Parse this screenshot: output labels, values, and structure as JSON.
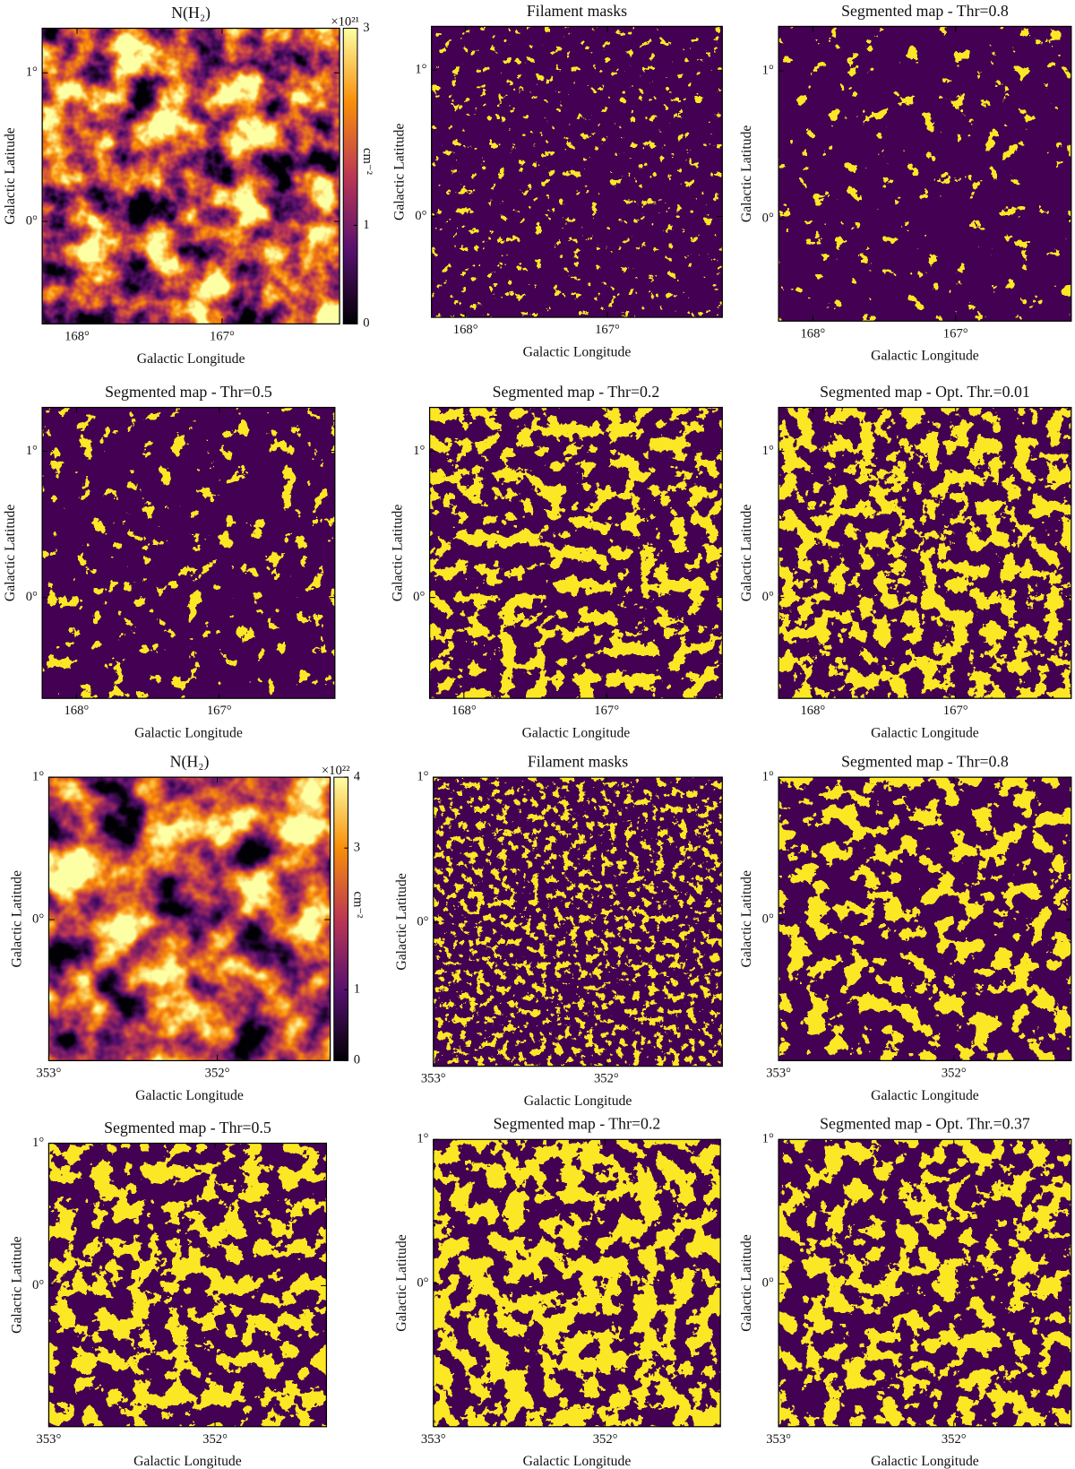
{
  "chart_data": [
    {
      "type": "image",
      "title": "N(H₂)",
      "xlabel": "Galactic Longitude",
      "ylabel": "Galactic Latitude",
      "xlim": [
        168.24,
        166.19
      ],
      "ylim": [
        -0.69,
        1.3
      ],
      "xticks": [
        {
          "value": 168,
          "label": "168°"
        },
        {
          "value": 167,
          "label": "167°"
        }
      ],
      "yticks": [
        {
          "value": 1,
          "label": "1°"
        },
        {
          "value": 0,
          "label": "0°"
        }
      ],
      "colorbar": {
        "lim": [
          0,
          3
        ],
        "ticks": [
          0,
          1,
          3
        ],
        "multiplier": "×10²¹",
        "label": "cm⁻²"
      }
    },
    {
      "type": "image",
      "title": "Filament masks",
      "xlabel": "Galactic Longitude",
      "ylabel": "Galactic Latitude",
      "xlim": [
        168.24,
        166.19
      ],
      "ylim": [
        -0.69,
        1.3
      ],
      "xticks": [
        {
          "value": 168,
          "label": "168°"
        },
        {
          "value": 167,
          "label": "167°"
        }
      ],
      "yticks": [
        {
          "value": 1,
          "label": "1°"
        },
        {
          "value": 0,
          "label": "0°"
        }
      ]
    },
    {
      "type": "image",
      "title": "Segmented map - Thr=0.8",
      "xlabel": "Galactic Longitude",
      "ylabel": "Galactic Latitude",
      "xlim": [
        168.24,
        166.19
      ],
      "ylim": [
        -0.69,
        1.3
      ],
      "xticks": [
        {
          "value": 168,
          "label": "168°"
        },
        {
          "value": 167,
          "label": "167°"
        }
      ],
      "yticks": [
        {
          "value": 1,
          "label": "1°"
        },
        {
          "value": 0,
          "label": "0°"
        }
      ]
    },
    {
      "type": "image",
      "title": "Segmented map - Thr=0.5",
      "xlabel": "Galactic Longitude",
      "ylabel": "Galactic Latitude",
      "xlim": [
        168.24,
        166.19
      ],
      "ylim": [
        -0.69,
        1.3
      ],
      "xticks": [
        {
          "value": 168,
          "label": "168°"
        },
        {
          "value": 167,
          "label": "167°"
        }
      ],
      "yticks": [
        {
          "value": 1,
          "label": "1°"
        },
        {
          "value": 0,
          "label": "0°"
        }
      ]
    },
    {
      "type": "image",
      "title": "Segmented map - Thr=0.2",
      "xlabel": "Galactic Longitude",
      "ylabel": "Galactic Latitude",
      "xlim": [
        168.24,
        166.19
      ],
      "ylim": [
        -0.69,
        1.3
      ],
      "xticks": [
        {
          "value": 168,
          "label": "168°"
        },
        {
          "value": 167,
          "label": "167°"
        }
      ],
      "yticks": [
        {
          "value": 1,
          "label": "1°"
        },
        {
          "value": 0,
          "label": "0°"
        }
      ]
    },
    {
      "type": "image",
      "title": "Segmented map - Opt. Thr.=0.01",
      "xlabel": "Galactic Longitude",
      "ylabel": "Galactic Latitude",
      "xlim": [
        168.24,
        166.19
      ],
      "ylim": [
        -0.69,
        1.3
      ],
      "xticks": [
        {
          "value": 168,
          "label": "168°"
        },
        {
          "value": 167,
          "label": "167°"
        }
      ],
      "yticks": [
        {
          "value": 1,
          "label": "1°"
        },
        {
          "value": 0,
          "label": "0°"
        }
      ]
    },
    {
      "type": "image",
      "title": "N(H₂)",
      "xlabel": "Galactic Longitude",
      "ylabel": "Galactic Latitude",
      "xlim": [
        353.0,
        351.33
      ],
      "ylim": [
        -0.99,
        1.0
      ],
      "xticks": [
        {
          "value": 353,
          "label": "353°"
        },
        {
          "value": 352,
          "label": "352°"
        }
      ],
      "yticks": [
        {
          "value": 1,
          "label": "1°"
        },
        {
          "value": 0,
          "label": "0°"
        }
      ],
      "colorbar": {
        "lim": [
          0,
          4
        ],
        "ticks": [
          0,
          1,
          3,
          4
        ],
        "multiplier": "×10²²",
        "label": "cm⁻²"
      }
    },
    {
      "type": "image",
      "title": "Filament masks",
      "xlabel": "Galactic Longitude",
      "ylabel": "Galactic Latitude",
      "xlim": [
        353.0,
        351.33
      ],
      "ylim": [
        -0.99,
        1.0
      ],
      "xticks": [
        {
          "value": 353,
          "label": "353°"
        },
        {
          "value": 352,
          "label": "352°"
        }
      ],
      "yticks": [
        {
          "value": 1,
          "label": "1°"
        },
        {
          "value": 0,
          "label": "0°"
        }
      ]
    },
    {
      "type": "image",
      "title": "Segmented map - Thr=0.8",
      "xlabel": "Galactic Longitude",
      "ylabel": "Galactic Latitude",
      "xlim": [
        353.0,
        351.33
      ],
      "ylim": [
        -0.99,
        1.0
      ],
      "xticks": [
        {
          "value": 353,
          "label": "353°"
        },
        {
          "value": 352,
          "label": "352°"
        }
      ],
      "yticks": [
        {
          "value": 1,
          "label": "1°"
        },
        {
          "value": 0,
          "label": "0°"
        }
      ]
    },
    {
      "type": "image",
      "title": "Segmented map - Thr=0.5",
      "xlabel": "Galactic Longitude",
      "ylabel": "Galactic Latitude",
      "xlim": [
        353.0,
        351.33
      ],
      "ylim": [
        -0.99,
        1.0
      ],
      "xticks": [
        {
          "value": 353,
          "label": "353°"
        },
        {
          "value": 352,
          "label": "352°"
        }
      ],
      "yticks": [
        {
          "value": 1,
          "label": "1°"
        },
        {
          "value": 0,
          "label": "0°"
        }
      ]
    },
    {
      "type": "image",
      "title": "Segmented map - Thr=0.2",
      "xlabel": "Galactic Longitude",
      "ylabel": "Galactic Latitude",
      "xlim": [
        353.0,
        351.33
      ],
      "ylim": [
        -0.99,
        1.0
      ],
      "xticks": [
        {
          "value": 353,
          "label": "353°"
        },
        {
          "value": 352,
          "label": "352°"
        }
      ],
      "yticks": [
        {
          "value": 1,
          "label": "1°"
        },
        {
          "value": 0,
          "label": "0°"
        }
      ]
    },
    {
      "type": "image",
      "title": "Segmented map - Opt. Thr.=0.37",
      "xlabel": "Galactic Longitude",
      "ylabel": "Galactic Latitude",
      "xlim": [
        353.0,
        351.33
      ],
      "ylim": [
        -0.99,
        1.0
      ],
      "xticks": [
        {
          "value": 353,
          "label": "353°"
        },
        {
          "value": 352,
          "label": "352°"
        }
      ],
      "yticks": [
        {
          "value": 1,
          "label": "1°"
        },
        {
          "value": 0,
          "label": "0°"
        }
      ]
    }
  ]
}
